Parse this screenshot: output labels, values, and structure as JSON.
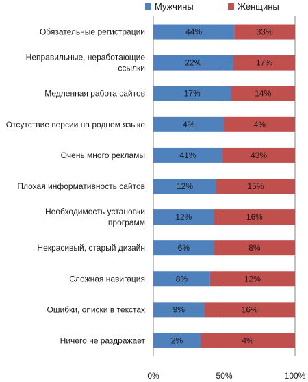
{
  "chart_data": {
    "type": "bar",
    "stacked": "percent",
    "orientation": "horizontal",
    "categories": [
      [
        "Обязательные регистрации"
      ],
      [
        "Неправильные, неработающие",
        "ссылки"
      ],
      [
        "Медленная работа сайтов"
      ],
      [
        "Отсутствие версии на родном языке"
      ],
      [
        "Очень много рекламы"
      ],
      [
        "Плохая информативность сайтов"
      ],
      [
        "Необходимость установки",
        "программ"
      ],
      [
        "Некрасивый, старый дизайн"
      ],
      [
        "Сложная навигация"
      ],
      [
        "Ошибки, описки в текстах"
      ],
      [
        "Ничего не раздражает"
      ]
    ],
    "series": [
      {
        "name": "Мужчины",
        "color": "#4f81bd",
        "labels": [
          "44%",
          "22%",
          "17%",
          "4%",
          "41%",
          "12%",
          "12%",
          "6%",
          "8%",
          "9%",
          "2%"
        ],
        "values": [
          44,
          22,
          17,
          4,
          41,
          12,
          12,
          6,
          8,
          9,
          2
        ]
      },
      {
        "name": "Женщины",
        "color": "#c0504d",
        "labels": [
          "33%",
          "17%",
          "14%",
          "4%",
          "43%",
          "15%",
          "16%",
          "8%",
          "12%",
          "16%",
          "4%"
        ],
        "values": [
          33,
          17,
          14,
          4,
          43,
          15,
          16,
          8,
          12,
          16,
          4
        ]
      }
    ],
    "xticks": [
      "0%",
      "50%",
      "100%"
    ],
    "xlim": [
      0,
      100
    ],
    "grid": true,
    "legend": "top",
    "gridline_color": "#868686"
  }
}
